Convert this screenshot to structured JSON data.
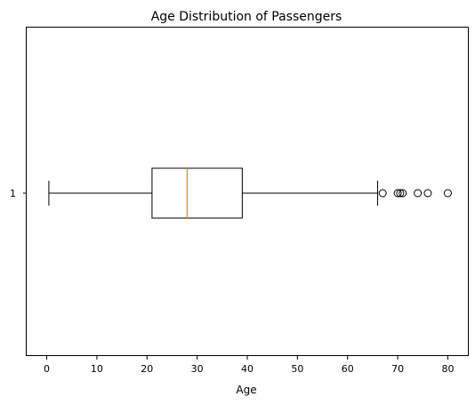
{
  "chart_data": {
    "type": "boxplot",
    "orientation": "horizontal",
    "title": "Age Distribution of Passengers",
    "xlabel": "Age",
    "ylabel": "",
    "xlim": [
      -4.0,
      84.0
    ],
    "xticks": [
      0,
      10,
      20,
      30,
      40,
      50,
      60,
      70,
      80
    ],
    "yticks": [
      "1"
    ],
    "grid": false,
    "boxes": [
      {
        "label": "1",
        "whisker_low": 0.42,
        "q1": 21,
        "median": 28,
        "q3": 39,
        "whisker_high": 66,
        "outliers": [
          67,
          70,
          70.5,
          71,
          74,
          76,
          80
        ]
      }
    ],
    "colors": {
      "box": "#000000",
      "median": "#ff7f0e",
      "axes": "#000000",
      "background": "#ffffff"
    }
  }
}
